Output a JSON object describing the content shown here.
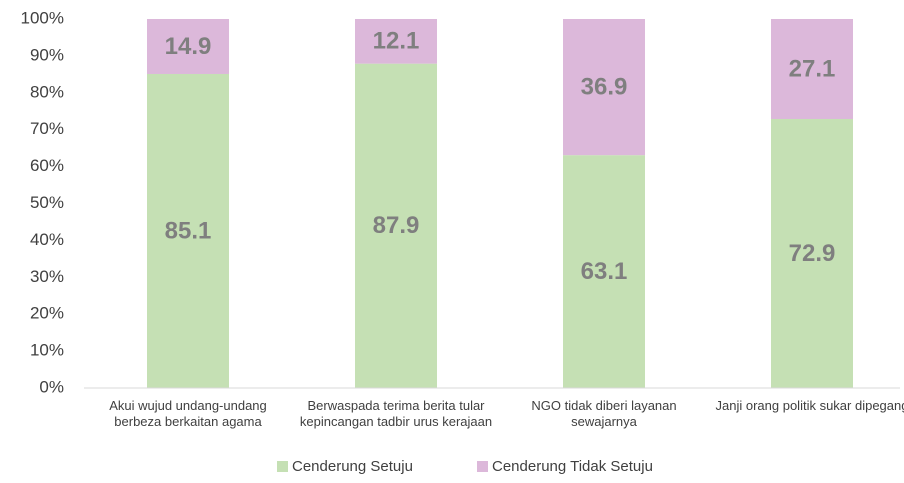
{
  "chart_data": {
    "type": "stacked_bar",
    "categories": [
      "Akui wujud undang-undang berbeza berkaitan agama",
      "Berwaspada terima berita tular kepincangan tadbir urus kerajaan",
      "NGO tidak diberi layanan sewajarnya",
      "Janji orang politik sukar dipegang"
    ],
    "series": [
      {
        "name": "Cenderung Setuju",
        "color": "#c5e0b4",
        "values": [
          85.1,
          87.9,
          63.1,
          72.9
        ]
      },
      {
        "name": "Cenderung Tidak Setuju",
        "color": "#dcb8da",
        "values": [
          14.9,
          12.1,
          36.9,
          27.1
        ]
      }
    ],
    "ylim": [
      0,
      100
    ],
    "yticks": [
      {
        "value": 0,
        "label": "0%"
      },
      {
        "value": 10,
        "label": "10%"
      },
      {
        "value": 20,
        "label": "20%"
      },
      {
        "value": 30,
        "label": "30%"
      },
      {
        "value": 40,
        "label": "40%"
      },
      {
        "value": 50,
        "label": "50%"
      },
      {
        "value": 60,
        "label": "60%"
      },
      {
        "value": 70,
        "label": "70%"
      },
      {
        "value": 80,
        "label": "80%"
      },
      {
        "value": 90,
        "label": "90%"
      },
      {
        "value": 100,
        "label": "100%"
      }
    ],
    "legend": "bottom"
  }
}
